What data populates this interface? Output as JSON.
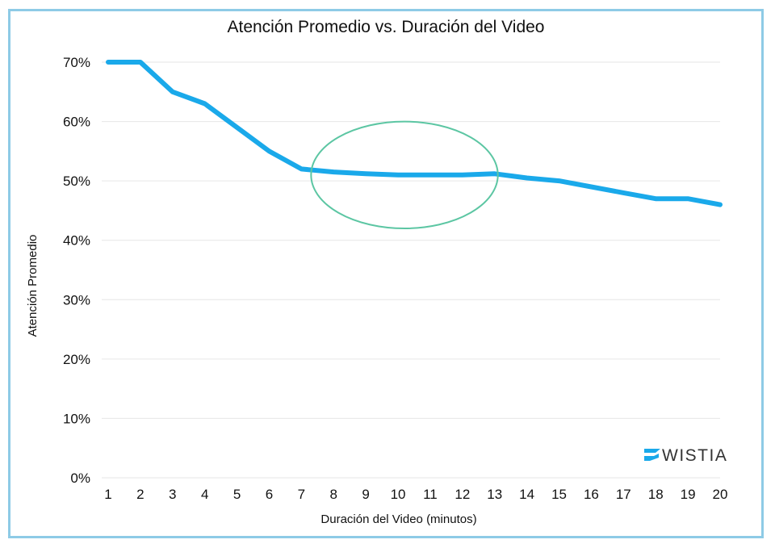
{
  "chart_data": {
    "type": "line",
    "title": "Atención Promedio vs. Duración del Video",
    "xlabel": "Duración del Video (minutos)",
    "ylabel": "Atención Promedio",
    "x": [
      1,
      2,
      3,
      4,
      5,
      6,
      7,
      8,
      9,
      10,
      11,
      12,
      13,
      14,
      15,
      16,
      17,
      18,
      19,
      20
    ],
    "x_tick_labels": [
      "1",
      "2",
      "3",
      "4",
      "5",
      "6",
      "7",
      "8",
      "9",
      "10",
      "11",
      "12",
      "13",
      "14",
      "15",
      "16",
      "17",
      "18",
      "19",
      "20"
    ],
    "y_tick_labels": [
      "0%",
      "10%",
      "20%",
      "30%",
      "40%",
      "50%",
      "60%",
      "70%"
    ],
    "y_ticks": [
      0,
      10,
      20,
      30,
      40,
      50,
      60,
      70
    ],
    "ylim": [
      0,
      70
    ],
    "xlim": [
      1,
      20
    ],
    "grid": true,
    "series": [
      {
        "values": [
          70,
          70,
          65,
          63,
          59,
          55,
          52,
          51.5,
          51.2,
          51,
          51,
          51,
          51.2,
          50.5,
          50,
          49,
          48,
          47,
          47,
          46
        ],
        "color": "#1aa9ea"
      }
    ],
    "annotation": {
      "shape": "ellipse",
      "x_center": 10.2,
      "y_center": 51,
      "x_radius": 2.9,
      "y_radius": 9,
      "color": "#5cc6a3"
    },
    "logo": {
      "text": "WISTIA",
      "color": "#1aa9ea"
    }
  }
}
